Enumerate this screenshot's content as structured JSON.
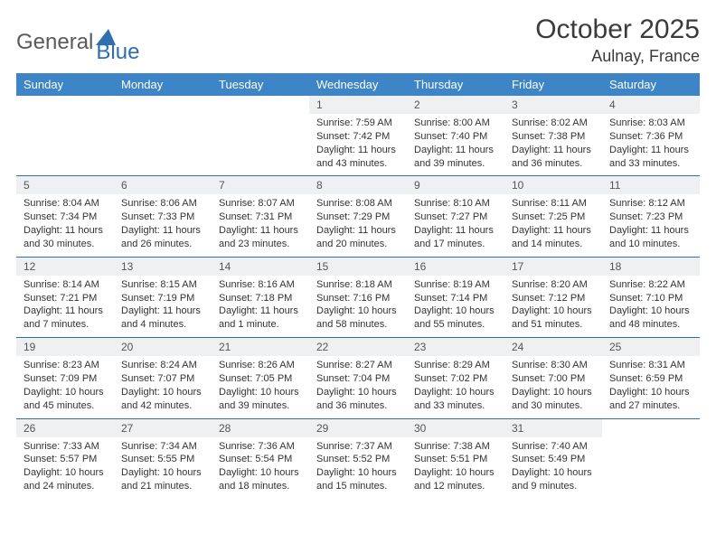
{
  "logo": {
    "word1": "General",
    "word2": "Blue",
    "word1_color": "#5a5a5a",
    "word2_color": "#2f6fb0"
  },
  "title": "October 2025",
  "location": "Aulnay, France",
  "colors": {
    "header_bg": "#3d85c6",
    "header_text": "#ffffff",
    "daynum_bg": "#eef0f2",
    "row_border": "#2f6fb0",
    "body_text": "#333333"
  },
  "weekdays": [
    "Sunday",
    "Monday",
    "Tuesday",
    "Wednesday",
    "Thursday",
    "Friday",
    "Saturday"
  ],
  "grid": {
    "rows": 5,
    "cols": 7,
    "first_weekday_index": 3,
    "days_in_month": 31
  },
  "days": {
    "1": {
      "sunrise": "7:59 AM",
      "sunset": "7:42 PM",
      "daylight": "11 hours and 43 minutes."
    },
    "2": {
      "sunrise": "8:00 AM",
      "sunset": "7:40 PM",
      "daylight": "11 hours and 39 minutes."
    },
    "3": {
      "sunrise": "8:02 AM",
      "sunset": "7:38 PM",
      "daylight": "11 hours and 36 minutes."
    },
    "4": {
      "sunrise": "8:03 AM",
      "sunset": "7:36 PM",
      "daylight": "11 hours and 33 minutes."
    },
    "5": {
      "sunrise": "8:04 AM",
      "sunset": "7:34 PM",
      "daylight": "11 hours and 30 minutes."
    },
    "6": {
      "sunrise": "8:06 AM",
      "sunset": "7:33 PM",
      "daylight": "11 hours and 26 minutes."
    },
    "7": {
      "sunrise": "8:07 AM",
      "sunset": "7:31 PM",
      "daylight": "11 hours and 23 minutes."
    },
    "8": {
      "sunrise": "8:08 AM",
      "sunset": "7:29 PM",
      "daylight": "11 hours and 20 minutes."
    },
    "9": {
      "sunrise": "8:10 AM",
      "sunset": "7:27 PM",
      "daylight": "11 hours and 17 minutes."
    },
    "10": {
      "sunrise": "8:11 AM",
      "sunset": "7:25 PM",
      "daylight": "11 hours and 14 minutes."
    },
    "11": {
      "sunrise": "8:12 AM",
      "sunset": "7:23 PM",
      "daylight": "11 hours and 10 minutes."
    },
    "12": {
      "sunrise": "8:14 AM",
      "sunset": "7:21 PM",
      "daylight": "11 hours and 7 minutes."
    },
    "13": {
      "sunrise": "8:15 AM",
      "sunset": "7:19 PM",
      "daylight": "11 hours and 4 minutes."
    },
    "14": {
      "sunrise": "8:16 AM",
      "sunset": "7:18 PM",
      "daylight": "11 hours and 1 minute."
    },
    "15": {
      "sunrise": "8:18 AM",
      "sunset": "7:16 PM",
      "daylight": "10 hours and 58 minutes."
    },
    "16": {
      "sunrise": "8:19 AM",
      "sunset": "7:14 PM",
      "daylight": "10 hours and 55 minutes."
    },
    "17": {
      "sunrise": "8:20 AM",
      "sunset": "7:12 PM",
      "daylight": "10 hours and 51 minutes."
    },
    "18": {
      "sunrise": "8:22 AM",
      "sunset": "7:10 PM",
      "daylight": "10 hours and 48 minutes."
    },
    "19": {
      "sunrise": "8:23 AM",
      "sunset": "7:09 PM",
      "daylight": "10 hours and 45 minutes."
    },
    "20": {
      "sunrise": "8:24 AM",
      "sunset": "7:07 PM",
      "daylight": "10 hours and 42 minutes."
    },
    "21": {
      "sunrise": "8:26 AM",
      "sunset": "7:05 PM",
      "daylight": "10 hours and 39 minutes."
    },
    "22": {
      "sunrise": "8:27 AM",
      "sunset": "7:04 PM",
      "daylight": "10 hours and 36 minutes."
    },
    "23": {
      "sunrise": "8:29 AM",
      "sunset": "7:02 PM",
      "daylight": "10 hours and 33 minutes."
    },
    "24": {
      "sunrise": "8:30 AM",
      "sunset": "7:00 PM",
      "daylight": "10 hours and 30 minutes."
    },
    "25": {
      "sunrise": "8:31 AM",
      "sunset": "6:59 PM",
      "daylight": "10 hours and 27 minutes."
    },
    "26": {
      "sunrise": "7:33 AM",
      "sunset": "5:57 PM",
      "daylight": "10 hours and 24 minutes."
    },
    "27": {
      "sunrise": "7:34 AM",
      "sunset": "5:55 PM",
      "daylight": "10 hours and 21 minutes."
    },
    "28": {
      "sunrise": "7:36 AM",
      "sunset": "5:54 PM",
      "daylight": "10 hours and 18 minutes."
    },
    "29": {
      "sunrise": "7:37 AM",
      "sunset": "5:52 PM",
      "daylight": "10 hours and 15 minutes."
    },
    "30": {
      "sunrise": "7:38 AM",
      "sunset": "5:51 PM",
      "daylight": "10 hours and 12 minutes."
    },
    "31": {
      "sunrise": "7:40 AM",
      "sunset": "5:49 PM",
      "daylight": "10 hours and 9 minutes."
    }
  },
  "labels": {
    "sunrise": "Sunrise:",
    "sunset": "Sunset:",
    "daylight": "Daylight:"
  }
}
